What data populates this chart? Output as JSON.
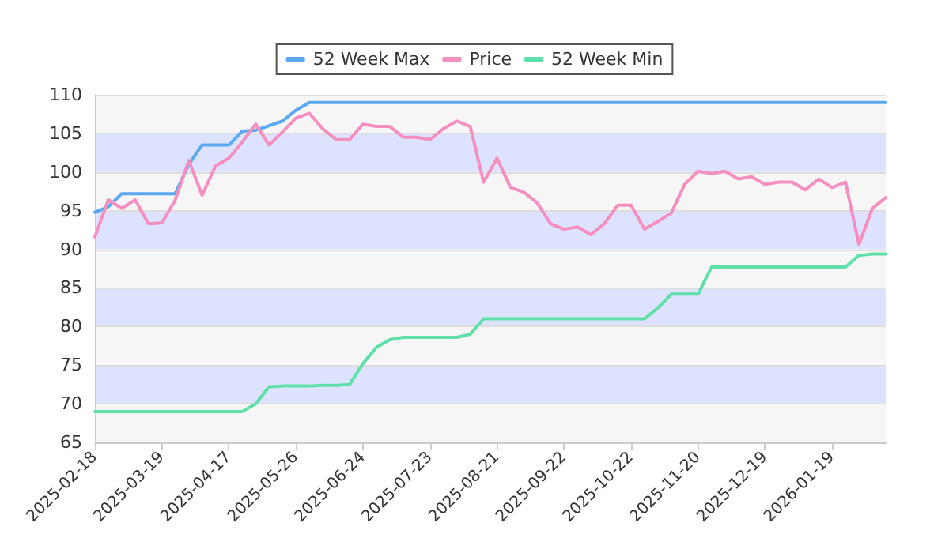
{
  "chart_data": {
    "type": "line",
    "categories": [
      "2025-02-18",
      null,
      null,
      null,
      null,
      "2025-03-19",
      null,
      null,
      null,
      null,
      "2025-04-17",
      null,
      null,
      null,
      null,
      "2025-05-26",
      null,
      null,
      null,
      null,
      "2025-06-24",
      null,
      null,
      null,
      null,
      "2025-07-23",
      null,
      null,
      null,
      null,
      "2025-08-21",
      null,
      null,
      null,
      null,
      "2025-09-22",
      null,
      null,
      null,
      null,
      "2025-10-22",
      null,
      null,
      null,
      null,
      "2025-11-20",
      null,
      null,
      null,
      null,
      "2025-12-19",
      null,
      null,
      null,
      null,
      "2026-01-19",
      null,
      null,
      null,
      null
    ],
    "series": [
      {
        "name": "52 Week Max",
        "color": "#5aa9f0",
        "values": [
          94.8,
          95.5,
          97.2,
          97.2,
          97.2,
          97.2,
          97.2,
          101,
          103.5,
          103.5,
          103.5,
          105.3,
          105.4,
          106,
          106.6,
          108,
          109,
          109,
          109,
          109,
          109,
          109,
          109,
          109,
          109,
          109,
          109,
          109,
          109,
          109,
          109,
          109,
          109,
          109,
          109,
          109,
          109,
          109,
          109,
          109,
          109,
          109,
          109,
          109,
          109,
          109,
          109,
          109,
          109,
          109,
          109,
          109,
          109,
          109,
          109,
          109,
          109,
          109,
          109,
          109
        ]
      },
      {
        "name": "Price",
        "color": "#f48fc0",
        "values": [
          91.6,
          96.4,
          95.3,
          96.4,
          93.3,
          93.4,
          96.4,
          101.5,
          97,
          100.8,
          101.8,
          103.9,
          106.2,
          103.5,
          105.2,
          107,
          107.6,
          105.6,
          104.2,
          104.2,
          106.2,
          105.9,
          105.9,
          104.5,
          104.5,
          104.2,
          105.6,
          106.6,
          105.9,
          98.7,
          101.8,
          98,
          97.4,
          96,
          93.3,
          92.6,
          92.9,
          91.9,
          93.3,
          95.7,
          95.7,
          92.6,
          93.6,
          94.7,
          98.4,
          100.1,
          99.8,
          100.1,
          99.1,
          99.4,
          98.4,
          98.7,
          98.7,
          97.7,
          99.1,
          98,
          98.7,
          90.6,
          95.3,
          96.7
        ]
      },
      {
        "name": "52 Week Min",
        "color": "#5fe0a8",
        "values": [
          69,
          69,
          69,
          69,
          69,
          69,
          69,
          69,
          69,
          69,
          69,
          69,
          70,
          72.2,
          72.3,
          72.3,
          72.3,
          72.4,
          72.4,
          72.5,
          75.2,
          77.3,
          78.3,
          78.6,
          78.6,
          78.6,
          78.6,
          78.6,
          79,
          81,
          81,
          81,
          81,
          81,
          81,
          81,
          81,
          81,
          81,
          81,
          81,
          81,
          82.4,
          84.2,
          84.2,
          84.2,
          87.7,
          87.7,
          87.7,
          87.7,
          87.7,
          87.7,
          87.7,
          87.7,
          87.7,
          87.7,
          87.7,
          89.2,
          89.4,
          89.4
        ]
      }
    ],
    "ylim": [
      65,
      110
    ],
    "yticks": [
      65,
      70,
      75,
      80,
      85,
      90,
      95,
      100,
      105,
      110
    ],
    "grid": "y",
    "legend": "top",
    "marker": "none",
    "line_style": "solid"
  }
}
